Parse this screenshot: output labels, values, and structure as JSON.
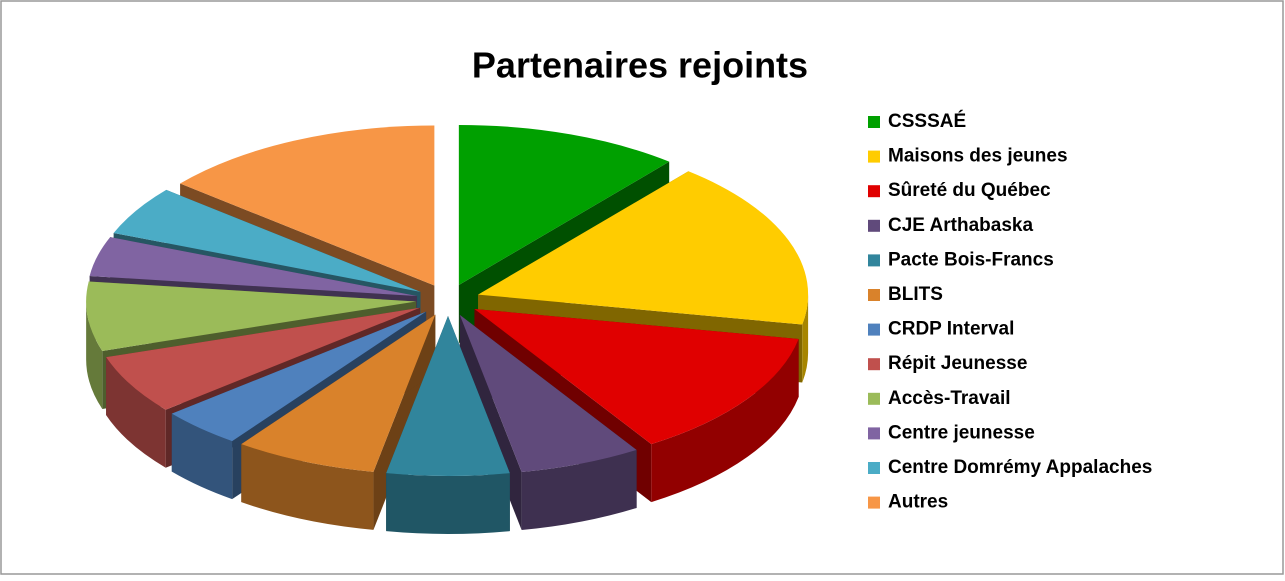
{
  "chart_data": {
    "type": "pie3d",
    "title": "Partenaires rejoints",
    "categories": [
      "CSSSAÉ",
      "Maisons des jeunes",
      "Sûreté du Québec",
      "CJE Arthabaska",
      "Pacte Bois-Francs",
      "BLITS",
      "CRDP Interval",
      "Répit Jeunesse",
      "Accès-Travail",
      "Centre jeunesse",
      "Centre Domrémy Appalaches",
      "Autres"
    ],
    "values": [
      11,
      17,
      13,
      6,
      6,
      7,
      4,
      6,
      7,
      4,
      5,
      14
    ],
    "colors": [
      "#00a000",
      "#ffcc00",
      "#e00000",
      "#604a7b",
      "#31859c",
      "#d9822b",
      "#4f81bd",
      "#c0504d",
      "#9bbb59",
      "#8064a2",
      "#4bacc6",
      "#f79646"
    ],
    "legend": "right"
  }
}
